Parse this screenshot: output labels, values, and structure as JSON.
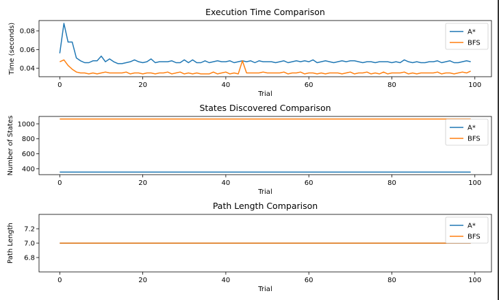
{
  "chart_data": [
    {
      "type": "line",
      "title": "Execution Time Comparison",
      "xlabel": "Trial",
      "ylabel": "Time (seconds)",
      "xlim": [
        -5,
        104
      ],
      "ylim": [
        0.031,
        0.091
      ],
      "xticks": [
        0,
        20,
        40,
        60,
        80,
        100
      ],
      "yticks": [
        0.04,
        0.06,
        0.08
      ],
      "ytick_labels": [
        "0.04",
        "0.06",
        "0.08"
      ],
      "legend": "top-right",
      "grid": false,
      "series": [
        {
          "name": "A*",
          "color": "#1f77b4",
          "values": [
            0.056,
            0.088,
            0.068,
            0.068,
            0.051,
            0.048,
            0.046,
            0.046,
            0.048,
            0.048,
            0.053,
            0.047,
            0.05,
            0.047,
            0.045,
            0.045,
            0.046,
            0.047,
            0.049,
            0.047,
            0.046,
            0.047,
            0.05,
            0.046,
            0.047,
            0.047,
            0.047,
            0.048,
            0.046,
            0.046,
            0.049,
            0.046,
            0.049,
            0.046,
            0.046,
            0.048,
            0.046,
            0.047,
            0.048,
            0.047,
            0.047,
            0.048,
            0.046,
            0.047,
            0.048,
            0.047,
            0.048,
            0.046,
            0.048,
            0.047,
            0.047,
            0.047,
            0.046,
            0.047,
            0.048,
            0.046,
            0.047,
            0.048,
            0.047,
            0.048,
            0.047,
            0.049,
            0.046,
            0.047,
            0.048,
            0.047,
            0.046,
            0.047,
            0.048,
            0.047,
            0.048,
            0.048,
            0.047,
            0.046,
            0.047,
            0.047,
            0.046,
            0.047,
            0.047,
            0.047,
            0.046,
            0.047,
            0.046,
            0.049,
            0.047,
            0.046,
            0.047,
            0.046,
            0.046,
            0.047,
            0.047,
            0.048,
            0.046,
            0.047,
            0.048,
            0.046,
            0.046,
            0.047,
            0.048,
            0.047
          ]
        },
        {
          "name": "BFS",
          "color": "#ff7f0e",
          "values": [
            0.047,
            0.049,
            0.043,
            0.039,
            0.036,
            0.035,
            0.035,
            0.034,
            0.035,
            0.034,
            0.035,
            0.036,
            0.035,
            0.035,
            0.035,
            0.035,
            0.036,
            0.034,
            0.035,
            0.035,
            0.034,
            0.035,
            0.035,
            0.034,
            0.035,
            0.035,
            0.036,
            0.034,
            0.035,
            0.036,
            0.034,
            0.035,
            0.034,
            0.035,
            0.034,
            0.034,
            0.034,
            0.036,
            0.034,
            0.035,
            0.036,
            0.034,
            0.035,
            0.034,
            0.048,
            0.035,
            0.035,
            0.035,
            0.035,
            0.036,
            0.035,
            0.035,
            0.035,
            0.035,
            0.036,
            0.034,
            0.035,
            0.035,
            0.036,
            0.034,
            0.035,
            0.035,
            0.034,
            0.035,
            0.034,
            0.035,
            0.035,
            0.035,
            0.034,
            0.035,
            0.036,
            0.034,
            0.035,
            0.035,
            0.036,
            0.034,
            0.035,
            0.034,
            0.036,
            0.034,
            0.035,
            0.035,
            0.035,
            0.036,
            0.034,
            0.035,
            0.034,
            0.035,
            0.035,
            0.035,
            0.035,
            0.036,
            0.034,
            0.035,
            0.035,
            0.034,
            0.035,
            0.036,
            0.035,
            0.037
          ]
        }
      ]
    },
    {
      "type": "line",
      "title": "States Discovered Comparison",
      "xlabel": "Trial",
      "ylabel": "Number of States",
      "xlim": [
        -5,
        104
      ],
      "ylim": [
        320,
        1100
      ],
      "xticks": [
        0,
        20,
        40,
        60,
        80,
        100
      ],
      "yticks": [
        400,
        600,
        800,
        1000
      ],
      "ytick_labels": [
        "400",
        "600",
        "800",
        "1000"
      ],
      "legend": "right",
      "grid": false,
      "series": [
        {
          "name": "A*",
          "color": "#1f77b4",
          "constant": 355,
          "count": 100
        },
        {
          "name": "BFS",
          "color": "#ff7f0e",
          "constant": 1065,
          "count": 100
        }
      ]
    },
    {
      "type": "line",
      "title": "Path Length Comparison",
      "xlabel": "Trial",
      "ylabel": "Path Length",
      "xlim": [
        -5,
        104
      ],
      "ylim": [
        6.6,
        7.4
      ],
      "xticks": [
        0,
        20,
        40,
        60,
        80,
        100
      ],
      "yticks": [
        6.8,
        7.0,
        7.2
      ],
      "ytick_labels": [
        "6.8",
        "7.0",
        "7.2"
      ],
      "legend": "top-right",
      "grid": false,
      "series": [
        {
          "name": "A*",
          "color": "#1f77b4",
          "constant": 7,
          "count": 100
        },
        {
          "name": "BFS",
          "color": "#ff7f0e",
          "constant": 7,
          "count": 100
        }
      ]
    }
  ]
}
